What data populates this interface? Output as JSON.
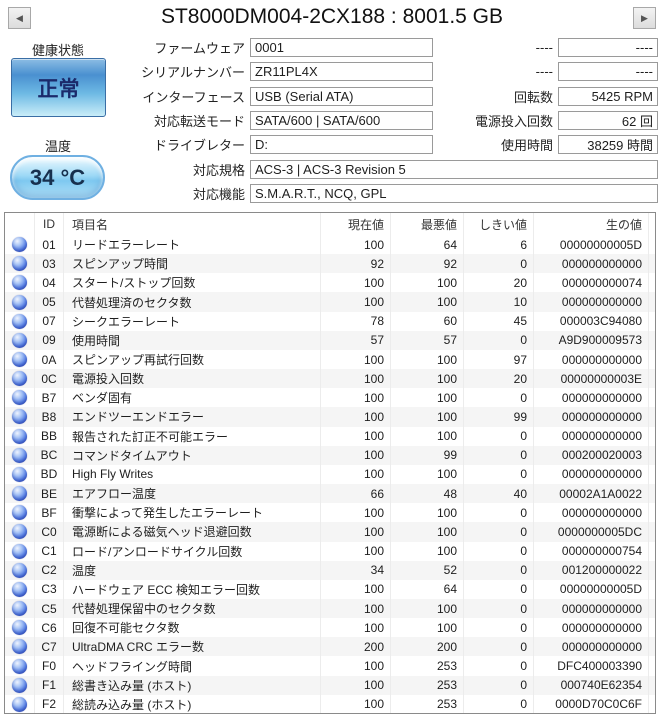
{
  "title": "ST8000DM004-2CX188 : 8001.5 GB",
  "nav": {
    "prev_icon": "◀",
    "next_icon": "▶"
  },
  "health": {
    "label": "健康状態",
    "status": "正常",
    "temp_label": "温度",
    "temp_value": "34 °C"
  },
  "info_left": [
    {
      "label": "ファームウェア",
      "value": "0001"
    },
    {
      "label": "シリアルナンバー",
      "value": "ZR11PL4X"
    },
    {
      "label": "インターフェース",
      "value": "USB (Serial ATA)"
    },
    {
      "label": "対応転送モード",
      "value": "SATA/600 | SATA/600"
    },
    {
      "label": "ドライブレター",
      "value": "D:"
    }
  ],
  "info_wide": [
    {
      "label": "対応規格",
      "value": "ACS-3 | ACS-3 Revision 5"
    },
    {
      "label": "対応機能",
      "value": "S.M.A.R.T., NCQ, GPL"
    }
  ],
  "info_right": [
    {
      "label": "----",
      "value": "----"
    },
    {
      "label": "----",
      "value": "----"
    },
    {
      "label": "回転数",
      "value": "5425 RPM"
    },
    {
      "label": "電源投入回数",
      "value": "62 回"
    },
    {
      "label": "使用時間",
      "value": "38259 時間"
    }
  ],
  "table": {
    "headers": {
      "id": "ID",
      "name": "項目名",
      "current": "現在値",
      "worst": "最悪値",
      "threshold": "しきい値",
      "raw": "生の値"
    },
    "rows": [
      {
        "id": "01",
        "name": "リードエラーレート",
        "current": "100",
        "worst": "64",
        "threshold": "6",
        "raw": "00000000005D"
      },
      {
        "id": "03",
        "name": "スピンアップ時間",
        "current": "92",
        "worst": "92",
        "threshold": "0",
        "raw": "000000000000"
      },
      {
        "id": "04",
        "name": "スタート/ストップ回数",
        "current": "100",
        "worst": "100",
        "threshold": "20",
        "raw": "000000000074"
      },
      {
        "id": "05",
        "name": "代替処理済のセクタ数",
        "current": "100",
        "worst": "100",
        "threshold": "10",
        "raw": "000000000000"
      },
      {
        "id": "07",
        "name": "シークエラーレート",
        "current": "78",
        "worst": "60",
        "threshold": "45",
        "raw": "000003C94080"
      },
      {
        "id": "09",
        "name": "使用時間",
        "current": "57",
        "worst": "57",
        "threshold": "0",
        "raw": "A9D900009573"
      },
      {
        "id": "0A",
        "name": "スピンアップ再試行回数",
        "current": "100",
        "worst": "100",
        "threshold": "97",
        "raw": "000000000000"
      },
      {
        "id": "0C",
        "name": "電源投入回数",
        "current": "100",
        "worst": "100",
        "threshold": "20",
        "raw": "00000000003E"
      },
      {
        "id": "B7",
        "name": "ベンダ固有",
        "current": "100",
        "worst": "100",
        "threshold": "0",
        "raw": "000000000000"
      },
      {
        "id": "B8",
        "name": "エンドツーエンドエラー",
        "current": "100",
        "worst": "100",
        "threshold": "99",
        "raw": "000000000000"
      },
      {
        "id": "BB",
        "name": "報告された訂正不可能エラー",
        "current": "100",
        "worst": "100",
        "threshold": "0",
        "raw": "000000000000"
      },
      {
        "id": "BC",
        "name": "コマンドタイムアウト",
        "current": "100",
        "worst": "99",
        "threshold": "0",
        "raw": "000200020003"
      },
      {
        "id": "BD",
        "name": "High Fly Writes",
        "current": "100",
        "worst": "100",
        "threshold": "0",
        "raw": "000000000000"
      },
      {
        "id": "BE",
        "name": "エアフロー温度",
        "current": "66",
        "worst": "48",
        "threshold": "40",
        "raw": "00002A1A0022"
      },
      {
        "id": "BF",
        "name": "衝撃によって発生したエラーレート",
        "current": "100",
        "worst": "100",
        "threshold": "0",
        "raw": "000000000000"
      },
      {
        "id": "C0",
        "name": "電源断による磁気ヘッド退避回数",
        "current": "100",
        "worst": "100",
        "threshold": "0",
        "raw": "0000000005DC"
      },
      {
        "id": "C1",
        "name": "ロード/アンロードサイクル回数",
        "current": "100",
        "worst": "100",
        "threshold": "0",
        "raw": "000000000754"
      },
      {
        "id": "C2",
        "name": "温度",
        "current": "34",
        "worst": "52",
        "threshold": "0",
        "raw": "001200000022"
      },
      {
        "id": "C3",
        "name": "ハードウェア ECC 検知エラー回数",
        "current": "100",
        "worst": "64",
        "threshold": "0",
        "raw": "00000000005D"
      },
      {
        "id": "C5",
        "name": "代替処理保留中のセクタ数",
        "current": "100",
        "worst": "100",
        "threshold": "0",
        "raw": "000000000000"
      },
      {
        "id": "C6",
        "name": "回復不可能セクタ数",
        "current": "100",
        "worst": "100",
        "threshold": "0",
        "raw": "000000000000"
      },
      {
        "id": "C7",
        "name": "UltraDMA CRC エラー数",
        "current": "200",
        "worst": "200",
        "threshold": "0",
        "raw": "000000000000"
      },
      {
        "id": "F0",
        "name": "ヘッドフライング時間",
        "current": "100",
        "worst": "253",
        "threshold": "0",
        "raw": "DFC400003390"
      },
      {
        "id": "F1",
        "name": "総書き込み量 (ホスト)",
        "current": "100",
        "worst": "253",
        "threshold": "0",
        "raw": "000740E62354"
      },
      {
        "id": "F2",
        "name": "総読み込み量 (ホスト)",
        "current": "100",
        "worst": "253",
        "threshold": "0",
        "raw": "0000D70C0C6F"
      }
    ]
  },
  "colors": {
    "health_good_blue": "#4a90d0",
    "temp_pill_blue": "#8fd0f2",
    "status_dot_blue": "#4a6fe0",
    "table_border": "#8a8a8a",
    "row_stripe": "#f5f5f5"
  }
}
